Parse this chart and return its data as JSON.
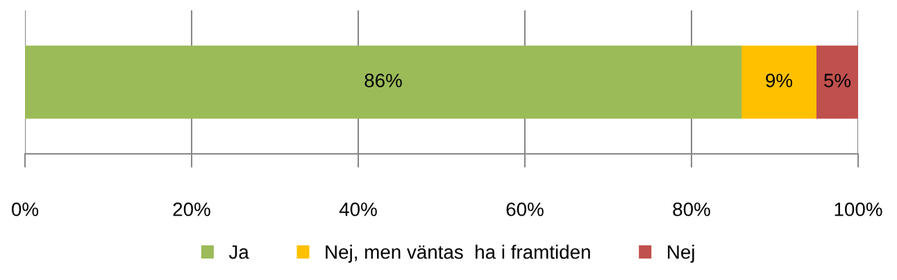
{
  "chart_data": {
    "type": "bar",
    "orientation": "horizontal",
    "stacked": true,
    "categories": [
      null
    ],
    "series": [
      {
        "name": "Ja",
        "color": "#9bbb59",
        "values": [
          86
        ],
        "value_labels": [
          "86%"
        ]
      },
      {
        "name": "Nej, men väntas  ha i framtiden",
        "color": "#ffc000",
        "values": [
          9
        ],
        "value_labels": [
          "9%"
        ]
      },
      {
        "name": "Nej",
        "color": "#c0504d",
        "values": [
          5
        ],
        "value_labels": [
          "5%"
        ]
      }
    ],
    "xlim": [
      0,
      100
    ],
    "xticks": [
      {
        "value": 0,
        "label": "0%"
      },
      {
        "value": 20,
        "label": "20%"
      },
      {
        "value": 40,
        "label": "40%"
      },
      {
        "value": 60,
        "label": "60%"
      },
      {
        "value": 80,
        "label": "80%"
      },
      {
        "value": 100,
        "label": "100%"
      }
    ],
    "grid": "x",
    "legend": "bottom"
  }
}
